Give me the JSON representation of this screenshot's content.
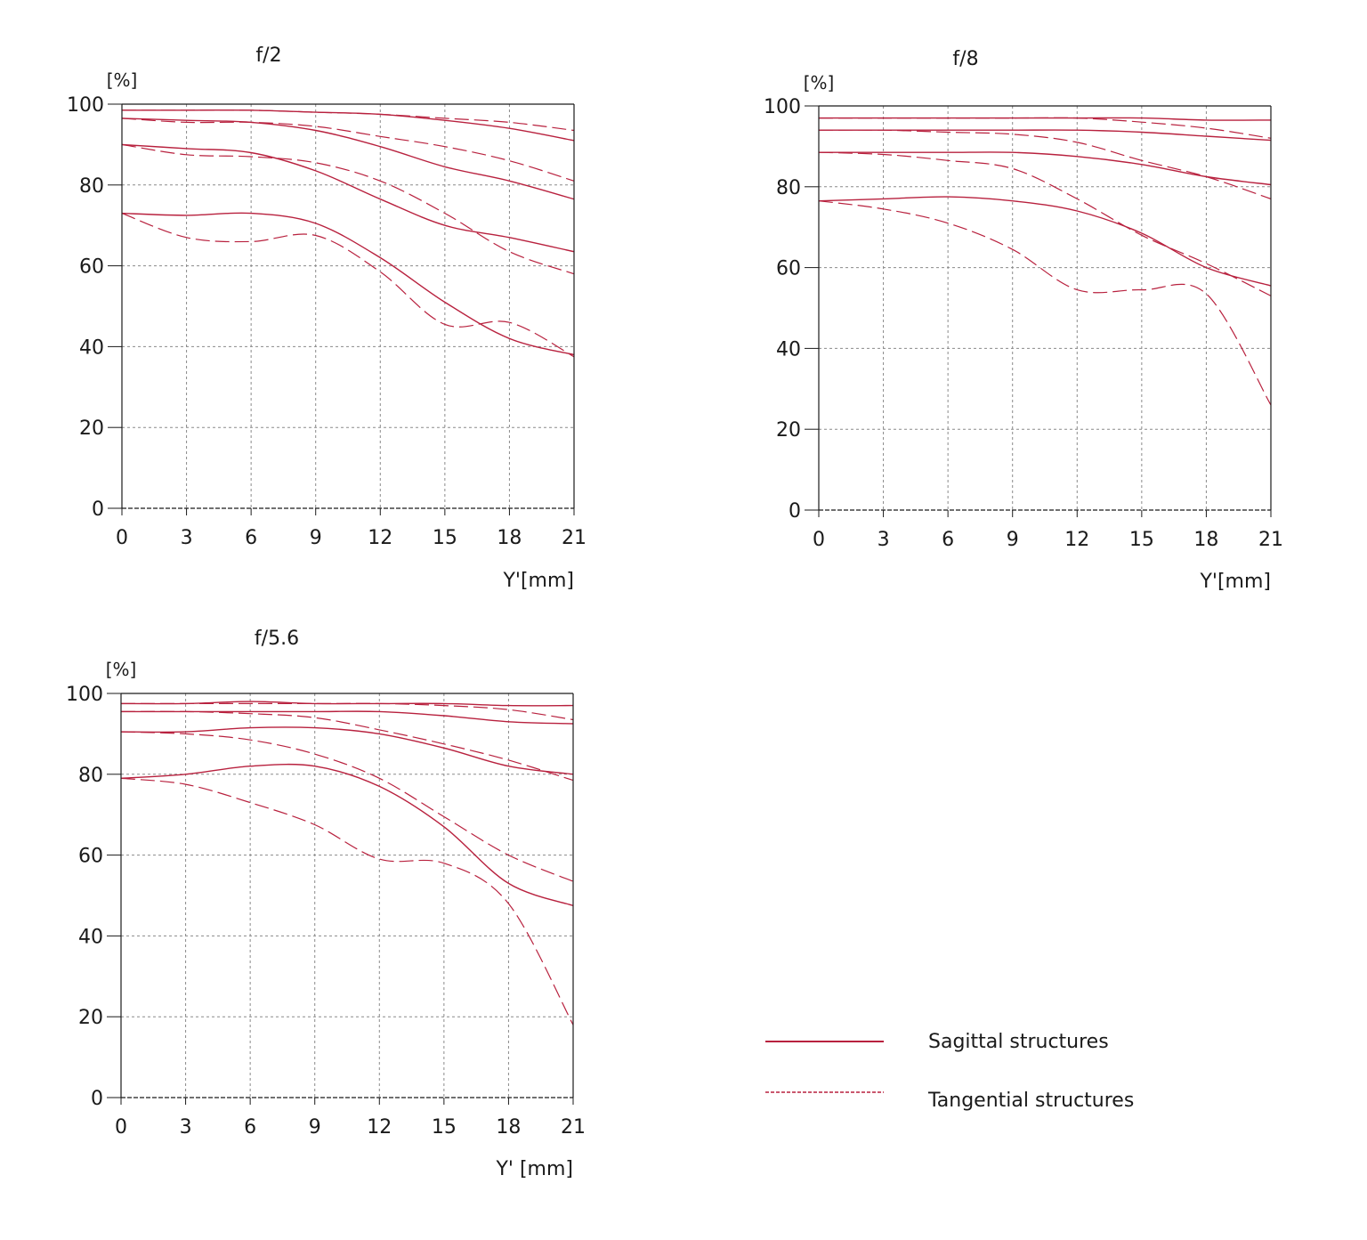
{
  "colors": {
    "curve": "#b8213e",
    "grid": "#8a8a8a",
    "axis": "#1a1a1a"
  },
  "legend": {
    "sagittal": {
      "label": "Sagittal structures",
      "style": "solid"
    },
    "tangential": {
      "label": "Tangential structures",
      "style": "dashed"
    }
  },
  "chart_data": [
    {
      "type": "line",
      "title": "f/2",
      "ylabel": "[%]",
      "xlabel": "Y'[mm]",
      "xlim": [
        0,
        21
      ],
      "ylim": [
        0,
        100
      ],
      "xticks": [
        "0",
        "3",
        "6",
        "9",
        "12",
        "15",
        "18",
        "21"
      ],
      "yticks": [
        "0",
        "20",
        "40",
        "60",
        "80",
        "100"
      ],
      "grid": true,
      "x": [
        0,
        3,
        6,
        9,
        12,
        15,
        18,
        21
      ],
      "series": [
        {
          "style": "solid",
          "values": [
            98.5,
            98.5,
            98.5,
            98,
            97.5,
            96,
            94,
            91
          ]
        },
        {
          "style": "dashed",
          "values": [
            98.5,
            98.5,
            98.5,
            98,
            97.5,
            96.5,
            95.5,
            93.5
          ]
        },
        {
          "style": "solid",
          "values": [
            96.5,
            96,
            95.5,
            93.5,
            89.5,
            84.5,
            81,
            76.5
          ]
        },
        {
          "style": "dashed",
          "values": [
            96.5,
            95.5,
            95.5,
            94.5,
            92,
            89.5,
            86,
            81
          ]
        },
        {
          "style": "solid",
          "values": [
            90,
            89,
            88,
            83.5,
            76.5,
            70,
            67,
            63.5
          ]
        },
        {
          "style": "dashed",
          "values": [
            90,
            87.5,
            87,
            85.5,
            81,
            73,
            63.5,
            58
          ]
        },
        {
          "style": "solid",
          "values": [
            73,
            72.5,
            73,
            70.5,
            62,
            51,
            42,
            38
          ]
        },
        {
          "style": "dashed",
          "values": [
            73,
            67,
            66,
            67.5,
            58.5,
            45.5,
            46,
            37.5
          ]
        }
      ]
    },
    {
      "type": "line",
      "title": "f/8",
      "ylabel": "[%]",
      "xlabel": "Y'[mm]",
      "xlim": [
        0,
        21
      ],
      "ylim": [
        0,
        100
      ],
      "xticks": [
        "0",
        "3",
        "6",
        "9",
        "12",
        "15",
        "18",
        "21"
      ],
      "yticks": [
        "0",
        "20",
        "40",
        "60",
        "80",
        "100"
      ],
      "grid": true,
      "x": [
        0,
        3,
        6,
        9,
        12,
        15,
        18,
        21
      ],
      "series": [
        {
          "style": "solid",
          "values": [
            97,
            97,
            97,
            97,
            97,
            97,
            96.5,
            96.5
          ]
        },
        {
          "style": "dashed",
          "values": [
            97,
            97,
            97,
            97,
            97,
            96,
            94.5,
            92
          ]
        },
        {
          "style": "solid",
          "values": [
            94,
            94,
            94,
            94,
            94,
            93.5,
            92.5,
            91.5
          ]
        },
        {
          "style": "dashed",
          "values": [
            94,
            94,
            93.5,
            93,
            91,
            86.5,
            82.5,
            77
          ]
        },
        {
          "style": "solid",
          "values": [
            88.5,
            88.5,
            88.5,
            88.5,
            87.5,
            85.5,
            82.5,
            80.5
          ]
        },
        {
          "style": "dashed",
          "values": [
            88.5,
            88,
            86.5,
            84.5,
            77,
            68,
            61,
            53
          ]
        },
        {
          "style": "solid",
          "values": [
            76.5,
            77,
            77.5,
            76.5,
            74,
            68.5,
            60,
            55.5
          ]
        },
        {
          "style": "dashed",
          "values": [
            76.5,
            74.5,
            71,
            64.5,
            54.5,
            54.5,
            53.5,
            26
          ]
        }
      ]
    },
    {
      "type": "line",
      "title": "f/5.6",
      "ylabel": "[%]",
      "xlabel": "Y' [mm]",
      "xlim": [
        0,
        21
      ],
      "ylim": [
        0,
        100
      ],
      "xticks": [
        "0",
        "3",
        "6",
        "9",
        "12",
        "15",
        "18",
        "21"
      ],
      "yticks": [
        "0",
        "20",
        "40",
        "60",
        "80",
        "100"
      ],
      "grid": true,
      "x": [
        0,
        3,
        6,
        9,
        12,
        15,
        18,
        21
      ],
      "series": [
        {
          "style": "solid",
          "values": [
            97.5,
            97.5,
            98,
            97.5,
            97.5,
            97.5,
            97,
            97
          ]
        },
        {
          "style": "dashed",
          "values": [
            97.5,
            97.5,
            97.5,
            97.5,
            97.5,
            97,
            96,
            93.5
          ]
        },
        {
          "style": "solid",
          "values": [
            95.5,
            95.5,
            95.5,
            95.5,
            95.5,
            94.5,
            93,
            92.5
          ]
        },
        {
          "style": "dashed",
          "values": [
            95.5,
            95.5,
            95,
            94,
            91,
            87.5,
            83.5,
            78.5
          ]
        },
        {
          "style": "solid",
          "values": [
            90.5,
            90.5,
            91.5,
            91.5,
            90,
            86.5,
            82,
            80
          ]
        },
        {
          "style": "dashed",
          "values": [
            90.5,
            90,
            88.5,
            85,
            79,
            69.5,
            60,
            53.5
          ]
        },
        {
          "style": "solid",
          "values": [
            79,
            80,
            82,
            82,
            77,
            67,
            53,
            47.5
          ]
        },
        {
          "style": "dashed",
          "values": [
            79,
            77.5,
            73,
            67.5,
            59,
            58,
            48,
            18
          ]
        }
      ]
    }
  ]
}
